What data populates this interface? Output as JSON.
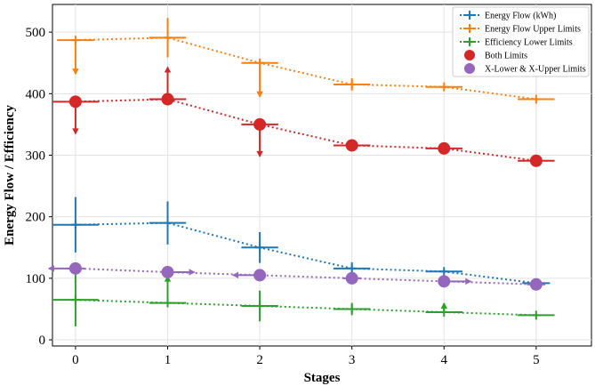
{
  "chart_data": {
    "type": "line",
    "xlabel": "Stages",
    "ylabel": "Energy Flow / Efficiency",
    "x_ticks": [
      "0",
      "1",
      "2",
      "3",
      "4",
      "5"
    ],
    "y_ticks": [
      "0",
      "100",
      "200",
      "300",
      "400",
      "500"
    ],
    "xlim": [
      -0.25,
      5.6
    ],
    "ylim": [
      -10,
      545
    ],
    "grid": true,
    "legend_position": "top-right",
    "x": [
      0,
      1,
      2,
      3,
      4,
      5
    ],
    "series": [
      {
        "name": "Energy Flow (kWh)",
        "color": "#1f77b4",
        "marker": "plus",
        "values": [
          187,
          190,
          150,
          116,
          111,
          92
        ],
        "yerr": [
          45,
          35,
          25,
          10,
          3,
          2
        ],
        "xerr": [
          0.25,
          0.2,
          0.2,
          0.2,
          0.2,
          0.15
        ]
      },
      {
        "name": "Energy Flow Upper Limits",
        "color": "#ff7f0e",
        "marker": "plus",
        "values": [
          487,
          491,
          450,
          415,
          411,
          391
        ],
        "yerr": [
          0,
          32,
          0,
          10,
          0,
          3
        ],
        "xerr": [
          0.2,
          0.2,
          0.2,
          0.2,
          0.2,
          0.2
        ],
        "uplims": [
          true,
          false,
          true,
          false,
          false,
          false
        ]
      },
      {
        "name": "Efficiency Lower Limits",
        "color": "#2ca02c",
        "marker": "plus",
        "values": [
          65,
          60,
          55,
          50,
          45,
          40
        ],
        "yerr": [
          43,
          0,
          25,
          10,
          0,
          0
        ],
        "xerr": [
          0.25,
          0.2,
          0.2,
          0.2,
          0.2,
          0.2
        ],
        "lolims": [
          false,
          true,
          false,
          false,
          true,
          false
        ]
      },
      {
        "name": "Both Limits",
        "color": "#d62728",
        "marker": "circle",
        "values": [
          387,
          391,
          350,
          316,
          311,
          291
        ],
        "xerr": [
          0.25,
          0.2,
          0.2,
          0.2,
          0.2,
          0.2
        ],
        "limit_arrows": [
          "down",
          "up",
          "down",
          "none",
          "none",
          "none"
        ]
      },
      {
        "name": "X-Lower & X-Upper Limits",
        "color": "#9467bd",
        "marker": "circle",
        "values": [
          116,
          110,
          105,
          100,
          95,
          90
        ],
        "x_limit_arrows": [
          "left",
          "right",
          "left",
          "none",
          "right",
          "none"
        ],
        "xerr": [
          0.1,
          0,
          0,
          0.1,
          0,
          0.1
        ]
      }
    ]
  }
}
